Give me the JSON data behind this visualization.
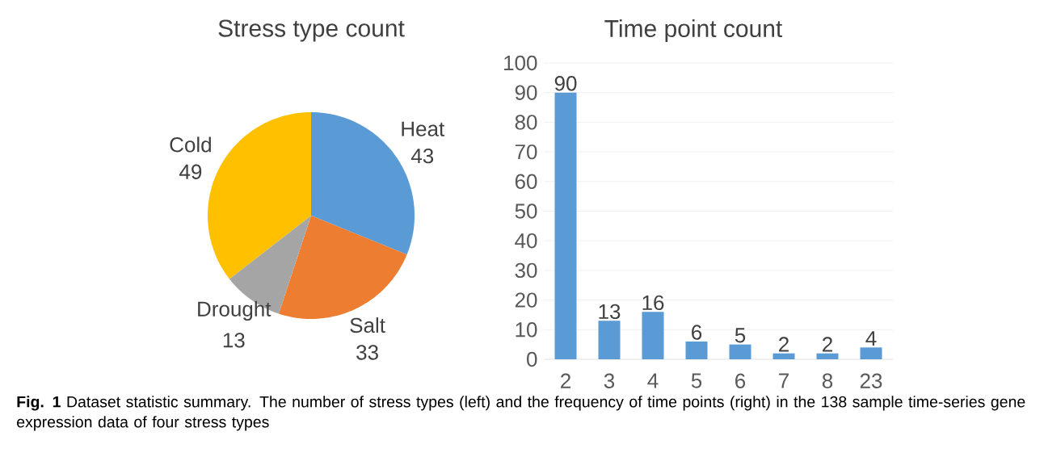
{
  "chart_data": [
    {
      "type": "pie",
      "title": "Stress type count",
      "categories": [
        "Heat",
        "Salt",
        "Drought",
        "Cold"
      ],
      "values": [
        43,
        33,
        13,
        49
      ],
      "colors": [
        "#5b9bd5",
        "#ed7d31",
        "#a5a5a5",
        "#ffc000"
      ],
      "data_labels": true,
      "annotations": [
        "**Fig. 1** Dataset statistic summary. The number of stress types (left) and the frequency of time points (right) in the 138 sample time-series gene expression data of four stress types"
      ]
    },
    {
      "type": "bar",
      "title": "Time point count",
      "categories": [
        "2",
        "3",
        "4",
        "5",
        "6",
        "7",
        "8",
        "23"
      ],
      "values": [
        90,
        13,
        16,
        6,
        5,
        2,
        2,
        4
      ],
      "color": "#5b9bd5",
      "ylim": [
        0,
        100
      ],
      "yticks": [
        0,
        10,
        20,
        30,
        40,
        50,
        60,
        70,
        80,
        90,
        100
      ],
      "grid": "y",
      "data_labels": true
    }
  ]
}
